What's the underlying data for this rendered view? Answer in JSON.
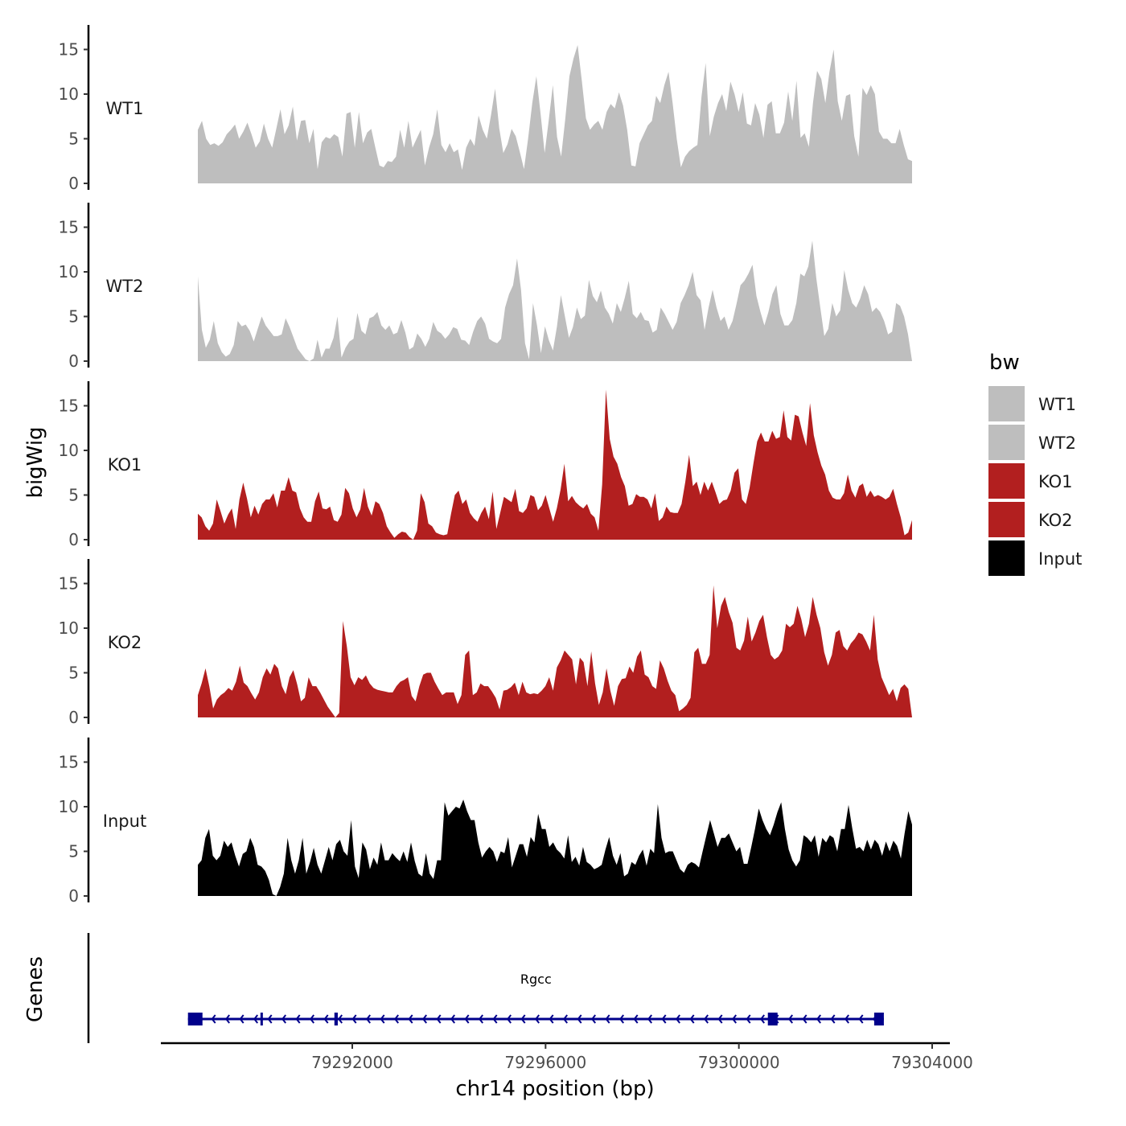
{
  "chart_data": {
    "type": "area",
    "y_axis_title": "bigWig",
    "x_axis_title": "chr14 position (bp)",
    "genes_axis_title": "Genes",
    "x_range": [
      79288600,
      79303400
    ],
    "x_axis_limits": [
      79288000,
      79304300
    ],
    "x_ticks": [
      79292000,
      79296000,
      79300000,
      79304000
    ],
    "x_tick_labels": [
      "79292000",
      "79296000",
      "79300000",
      "79304000"
    ],
    "y_range": [
      0,
      17
    ],
    "y_ticks": [
      0,
      5,
      10,
      15
    ],
    "y_tick_labels": [
      "0",
      "5",
      "10",
      "15"
    ],
    "legend": {
      "title": "bw",
      "items": [
        {
          "label": "WT1",
          "color": "#bebebe"
        },
        {
          "label": "WT2",
          "color": "#bebebe"
        },
        {
          "label": "KO1",
          "color": "#b21f1f"
        },
        {
          "label": "KO2",
          "color": "#b21f1f"
        },
        {
          "label": "Input",
          "color": "#000000"
        }
      ]
    },
    "series": [
      {
        "name": "WT1",
        "color": "#bebebe",
        "values": [
          6,
          7,
          5,
          4.3,
          4.5,
          4.2,
          4.6,
          5.5,
          6,
          6.6,
          5,
          5.8,
          6.8,
          5.5,
          4,
          4.7,
          6.7,
          5,
          4,
          6.1,
          8.3,
          5.5,
          6.5,
          8.6,
          4.8,
          7,
          7.1,
          4.5,
          6.1,
          1.6,
          4.6,
          5.2,
          5,
          5.5,
          5.2,
          3,
          7.8,
          8,
          4,
          8,
          4.5,
          5.7,
          6.1,
          4,
          2,
          1.8,
          2.5,
          2.4,
          3,
          6,
          4,
          7,
          4,
          5,
          6,
          2,
          4,
          5.5,
          8.3,
          4.3,
          3.5,
          4.5,
          3.5,
          3.8,
          1.5,
          4,
          5,
          4.2,
          7.6,
          6,
          5,
          7.6,
          10.6,
          6.2,
          3.4,
          4.4,
          6.1,
          5.3,
          3.5,
          1.6,
          5,
          9,
          12,
          7.9,
          3.4,
          7.1,
          11,
          5.2,
          3,
          7.2,
          12,
          14,
          15.5,
          11.5,
          7.3,
          6,
          6.6,
          7,
          6,
          8,
          8.9,
          8.4,
          10.2,
          8.7,
          6,
          2,
          1.9,
          4.5,
          5.5,
          6.5,
          7,
          9.8,
          9,
          11,
          12.5,
          9,
          5,
          1.8,
          3,
          3.6,
          4,
          4.3,
          9.7,
          13.5,
          5.3,
          7.5,
          9,
          10,
          8.1,
          11.4,
          10,
          8,
          10.2,
          6.7,
          6.5,
          9,
          7.7,
          5.1,
          8.8,
          9.2,
          5.6,
          5.6,
          6.8,
          10.3,
          7,
          11.5,
          5.1,
          5.6,
          4.1,
          9,
          12.6,
          11.7,
          9,
          12.5,
          15,
          9.2,
          7,
          9.8,
          10,
          5.3,
          3,
          10.7,
          9.9,
          11,
          10,
          5.8,
          5,
          5,
          4.5,
          4.5,
          6.1,
          4.3,
          2.7,
          2.5
        ]
      },
      {
        "name": "WT2",
        "color": "#bebebe",
        "values": [
          9.5,
          3.5,
          1.5,
          2.4,
          4.5,
          2,
          1,
          0.5,
          0.8,
          1.8,
          4.5,
          3.9,
          4.1,
          3.4,
          2.2,
          3.6,
          5,
          4,
          3.4,
          2.8,
          2.8,
          3,
          4.8,
          3.8,
          2.6,
          1.4,
          0.8,
          0.2,
          0,
          0.3,
          2.4,
          0.4,
          1.4,
          1.4,
          2.6,
          5,
          0.4,
          1.5,
          2.2,
          2.5,
          5.4,
          3.4,
          3,
          4.8,
          5,
          5.5,
          4,
          3.5,
          4,
          3,
          3.2,
          4.6,
          3.2,
          1.3,
          1.6,
          3.1,
          2.5,
          1.6,
          2.5,
          4.4,
          3.4,
          3.1,
          2.5,
          3,
          3.8,
          3.6,
          2.4,
          2.3,
          1.8,
          3.3,
          4.5,
          5,
          4.2,
          2.5,
          2.2,
          2,
          2.5,
          6,
          7.5,
          8.5,
          11.5,
          8,
          2,
          0.2,
          6.5,
          4,
          0.9,
          3.9,
          2.3,
          1.2,
          3.9,
          7.4,
          5,
          2.6,
          3.8,
          6,
          4.7,
          5.1,
          9.1,
          7.3,
          6.6,
          7.9,
          6,
          5.3,
          4.2,
          6.5,
          5.5,
          7.1,
          9,
          5.3,
          4.8,
          5.5,
          4.6,
          4.5,
          3.2,
          3.5,
          6,
          5.3,
          4.4,
          3.5,
          4.4,
          6.5,
          7.4,
          8.5,
          10,
          7.4,
          6.8,
          3.5,
          6,
          8,
          6,
          4.5,
          5,
          3.5,
          4.5,
          6.4,
          8.5,
          9,
          9.8,
          10.8,
          7.3,
          5.5,
          4,
          5.5,
          7.5,
          8.5,
          5.3,
          4,
          4,
          4.6,
          6.5,
          9.8,
          9.5,
          10.6,
          13.5,
          9.3,
          6,
          2.8,
          3.6,
          6.5,
          5,
          5.7,
          10.2,
          8,
          6.5,
          6,
          7,
          8.5,
          7.5,
          5.5,
          6,
          5.5,
          4.5,
          3,
          3.3,
          6.5,
          6.2,
          5,
          3,
          0
        ]
      },
      {
        "name": "KO1",
        "color": "#b21f1f",
        "values": [
          2.9,
          2.5,
          1.5,
          1,
          1.8,
          4.5,
          3.2,
          1.8,
          2.8,
          3.5,
          1.2,
          4.5,
          6.4,
          4.6,
          2.5,
          3.8,
          2.8,
          4,
          4.5,
          4.5,
          5.2,
          3.6,
          5.5,
          5.5,
          7,
          5.5,
          5.3,
          3.5,
          2.5,
          2,
          2,
          4.3,
          5.4,
          3.5,
          3.4,
          3.7,
          2.2,
          2,
          2.8,
          5.8,
          5.2,
          3.5,
          2.5,
          3.4,
          5.8,
          3.7,
          2.7,
          4.3,
          4,
          3,
          1.5,
          0.8,
          0.2,
          0.6,
          0.9,
          0.8,
          0.3,
          0,
          1,
          5.2,
          4.2,
          1.8,
          1.5,
          0.8,
          0.6,
          0.5,
          0.6,
          2.9,
          5,
          5.5,
          4,
          4.5,
          3,
          2.4,
          2,
          3,
          3.7,
          2.3,
          5.4,
          1.2,
          3,
          4.8,
          4.5,
          4.2,
          5.7,
          3.2,
          3,
          3.5,
          5,
          4.8,
          3.3,
          3.8,
          5,
          3.5,
          2,
          3.5,
          5.6,
          8.5,
          4.3,
          4.9,
          4.2,
          3.8,
          3.5,
          4,
          2.9,
          2.5,
          1,
          6.2,
          16.8,
          11.3,
          9.3,
          8.5,
          7,
          6,
          3.8,
          4,
          5.1,
          4.8,
          4.8,
          4.5,
          3.5,
          5.2,
          2.1,
          2.5,
          3.7,
          3.1,
          3,
          3,
          4,
          6.5,
          9.5,
          6,
          6.5,
          5,
          6.5,
          5.5,
          6.5,
          5.3,
          4,
          4.4,
          4.5,
          5.5,
          7.5,
          8,
          4.5,
          4,
          5.8,
          8.5,
          11,
          12,
          11,
          11,
          12.2,
          11.3,
          11.5,
          14.5,
          11.5,
          11.1,
          14,
          13.8,
          12,
          10.5,
          15.3,
          11.7,
          9.8,
          8.3,
          7.3,
          5.5,
          4.7,
          4.5,
          4.5,
          5.2,
          7.3,
          5.5,
          4.7,
          6,
          6.3,
          4.8,
          5.5,
          4.8,
          5,
          4.8,
          4.5,
          4.8,
          5.7,
          4,
          2.5,
          0.5,
          0.8,
          2.2
        ]
      },
      {
        "name": "KO2",
        "color": "#b21f1f",
        "values": [
          2.5,
          3.8,
          5.5,
          3.5,
          1,
          2,
          2.5,
          2.8,
          3.3,
          3,
          4,
          5.8,
          3.9,
          3.5,
          2.7,
          2,
          2.8,
          4.5,
          5.5,
          4.8,
          6,
          5.5,
          3.5,
          2.6,
          4.5,
          5.3,
          3.7,
          1.8,
          2.2,
          4.5,
          3.5,
          3.5,
          2.8,
          2,
          1.2,
          0.6,
          0,
          0.5,
          10.8,
          8,
          4.5,
          3.6,
          4.5,
          4.2,
          4.7,
          3.8,
          3.3,
          3.1,
          3,
          2.9,
          2.8,
          2.8,
          3.5,
          4,
          4.2,
          4.5,
          2.4,
          1.8,
          3.5,
          4.8,
          5,
          5,
          4,
          3.2,
          2.5,
          2.8,
          2.8,
          2.8,
          1.5,
          2.5,
          7,
          7.5,
          2.5,
          2.8,
          3.8,
          3.5,
          3.5,
          2.9,
          2.2,
          0.9,
          3,
          3.1,
          3.4,
          3.9,
          2.5,
          4,
          2.8,
          2.6,
          2.7,
          2.6,
          3,
          3.5,
          4.5,
          3,
          5.6,
          6.4,
          7.5,
          7,
          6.5,
          3.7,
          6.7,
          6.2,
          3.5,
          7.4,
          3.8,
          1.4,
          2.8,
          5.5,
          3,
          1.3,
          3.5,
          4.3,
          4.4,
          5.7,
          5,
          6.8,
          7.5,
          4.8,
          4.5,
          3.5,
          3.2,
          6.4,
          5.5,
          4.1,
          3,
          2.5,
          0.7,
          1,
          1.4,
          2.2,
          7.3,
          7.8,
          6,
          6,
          7,
          14.8,
          10,
          12.5,
          13.5,
          11.8,
          10.6,
          7.8,
          7.5,
          8.6,
          11.3,
          8.5,
          9.5,
          10.8,
          11.5,
          9,
          7,
          6.5,
          6.8,
          7.5,
          10.5,
          10.1,
          10.5,
          12.5,
          11,
          9,
          10.5,
          13.5,
          11.5,
          10,
          7.3,
          5.8,
          7,
          9.5,
          9.8,
          8,
          7.5,
          8.3,
          8.8,
          9.5,
          9.3,
          8.5,
          7.5,
          11.5,
          6.5,
          4.5,
          3.5,
          2.5,
          3.2,
          1.8,
          3.3,
          3.7,
          3.2,
          0
        ]
      },
      {
        "name": "Input",
        "color": "#000000",
        "values": [
          3.5,
          4,
          6.5,
          7.5,
          4.5,
          4,
          4.5,
          6.2,
          5.5,
          6,
          4.5,
          3.3,
          4.7,
          5,
          6.5,
          5.5,
          3.5,
          3.3,
          2.8,
          1.8,
          0.2,
          0,
          1,
          2.5,
          6.5,
          4,
          2.5,
          4,
          6.5,
          2.5,
          3.8,
          5.4,
          3.5,
          2.5,
          4,
          5.5,
          4,
          5.8,
          6.3,
          5,
          4.5,
          8.5,
          3.3,
          2,
          6,
          5.2,
          3,
          4.3,
          3.5,
          6,
          4,
          4,
          4.8,
          4.3,
          3.9,
          5,
          3.8,
          6,
          3.9,
          2.5,
          2.2,
          4.8,
          2.5,
          1.9,
          4,
          4,
          10.5,
          9,
          9.5,
          10,
          9.8,
          10.8,
          9.5,
          8.5,
          8.5,
          6,
          4.3,
          5,
          5.5,
          5,
          3.8,
          5,
          4.8,
          6.6,
          3.2,
          4.5,
          5.8,
          5.8,
          4.4,
          6.6,
          6,
          9.2,
          7.5,
          7.5,
          5.5,
          6,
          5.2,
          4.8,
          4.2,
          6.8,
          3.8,
          4.4,
          3.4,
          5.5,
          3.8,
          3.5,
          3,
          3.2,
          3.5,
          5.2,
          6.6,
          4.5,
          3.5,
          4.8,
          2.2,
          2.5,
          3.8,
          3.5,
          4.5,
          5.2,
          3.4,
          5.3,
          4.8,
          10.3,
          6.5,
          4.8,
          5,
          5,
          4,
          3,
          2.6,
          3.5,
          3.8,
          3.6,
          3.2,
          5,
          6.8,
          8.5,
          7,
          5.5,
          6.5,
          6.5,
          7,
          6,
          5,
          5.5,
          3.6,
          3.6,
          5.5,
          7.5,
          9.8,
          8.5,
          7.5,
          6.8,
          8,
          9.4,
          10.5,
          7.5,
          5.2,
          4,
          3.3,
          4,
          6.8,
          6.5,
          6,
          6.8,
          4.4,
          6.5,
          6,
          6.8,
          6.5,
          5,
          7.5,
          7.5,
          10.2,
          7.6,
          5.3,
          5.5,
          5,
          6.3,
          5.2,
          6.3,
          5.8,
          4.5,
          6.1,
          5,
          6.2,
          5.6,
          4.2,
          7,
          9.5,
          8
        ]
      }
    ],
    "gene_track": {
      "gene_name": "Rgcc",
      "strand": "-",
      "start": 79288600,
      "end": 79303000,
      "exons": [
        {
          "start": 79288600,
          "end": 79288900
        },
        {
          "start": 79290100,
          "end": 79290140
        },
        {
          "start": 79291630,
          "end": 79291700
        },
        {
          "start": 79300600,
          "end": 79300800
        },
        {
          "start": 79302800,
          "end": 79303000
        }
      ],
      "color": "#00008b"
    }
  }
}
